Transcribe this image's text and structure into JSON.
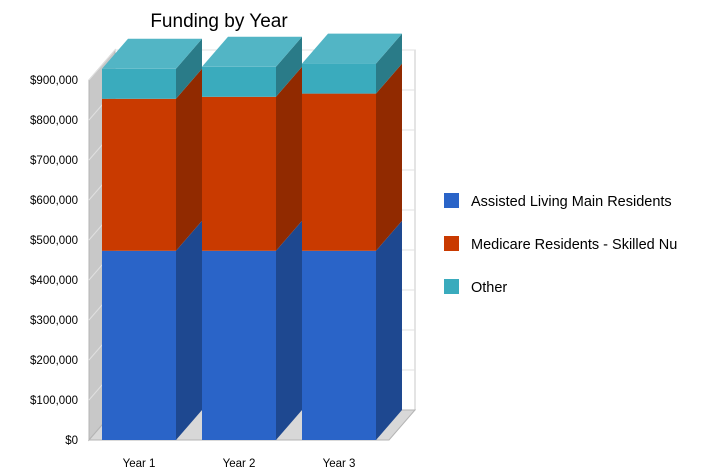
{
  "chart_data": {
    "type": "bar",
    "stacked": true,
    "three_d": true,
    "title": "Funding by Year",
    "xlabel": "",
    "ylabel": "",
    "categories": [
      "Year 1",
      "Year 2",
      "Year 3"
    ],
    "ylim": [
      0,
      900000
    ],
    "y_ticks": [
      {
        "value": 0,
        "label": "$0"
      },
      {
        "value": 100000,
        "label": "$100,000"
      },
      {
        "value": 200000,
        "label": "$200,000"
      },
      {
        "value": 300000,
        "label": "$300,000"
      },
      {
        "value": 400000,
        "label": "$400,000"
      },
      {
        "value": 500000,
        "label": "$500,000"
      },
      {
        "value": 600000,
        "label": "$600,000"
      },
      {
        "value": 700000,
        "label": "$700,000"
      },
      {
        "value": 800000,
        "label": "$800,000"
      },
      {
        "value": 900000,
        "label": "$900,000"
      }
    ],
    "grid": true,
    "legend_position": "right",
    "series": [
      {
        "name": "Assisted Living Main Residents",
        "values": [
          473000,
          473000,
          473000
        ],
        "color": "#2a64c8"
      },
      {
        "name": "Medicare Residents - Skilled Nu",
        "values": [
          380000,
          385000,
          393000
        ],
        "color": "#c93a00"
      },
      {
        "name": "Other",
        "values": [
          75000,
          75000,
          75000
        ],
        "color": "#3aabbd"
      }
    ]
  }
}
